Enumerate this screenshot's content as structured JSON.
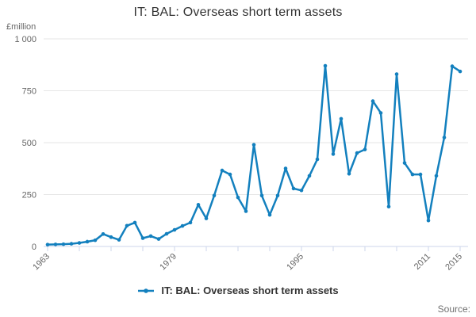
{
  "page": {
    "title": "IT: BAL: Overseas short term assets",
    "source_label": "Source:"
  },
  "legend": {
    "label": "IT: BAL: Overseas short term assets"
  },
  "y_axis": {
    "unit_label": "£million"
  },
  "colors": {
    "line": "#1380be",
    "grid": "#e6e6e6",
    "axis": "#ccd6eb",
    "tick_label": "#666666",
    "title": "#333333",
    "source": "#707070"
  },
  "chart_data": {
    "type": "line",
    "title": "IT: BAL: Overseas short term assets",
    "xlabel": "",
    "ylabel": "£million",
    "ylim": [
      0,
      1000
    ],
    "xlim": [
      1963,
      2016
    ],
    "grid": true,
    "legend_position": "bottom",
    "yticks": [
      {
        "value": 0,
        "label": "0"
      },
      {
        "value": 250,
        "label": "250"
      },
      {
        "value": 500,
        "label": "500"
      },
      {
        "value": 750,
        "label": "750"
      },
      {
        "value": 1000,
        "label": "1 000"
      }
    ],
    "xticks_all": [
      1963,
      1967,
      1971,
      1975,
      1979,
      1983,
      1987,
      1991,
      1995,
      1999,
      2003,
      2007,
      2011,
      2015
    ],
    "xticks_labeled": [
      1963,
      1979,
      1995,
      2011,
      2015
    ],
    "series": [
      {
        "name": "IT: BAL: Overseas short term assets",
        "color": "#1380be",
        "years": [
          1963,
          1964,
          1965,
          1966,
          1967,
          1968,
          1969,
          1970,
          1971,
          1972,
          1973,
          1974,
          1975,
          1976,
          1977,
          1978,
          1979,
          1980,
          1981,
          1982,
          1983,
          1984,
          1985,
          1986,
          1987,
          1988,
          1989,
          1990,
          1991,
          1992,
          1993,
          1994,
          1995,
          1996,
          1997,
          1998,
          1999,
          2000,
          2001,
          2002,
          2003,
          2004,
          2005,
          2006,
          2007,
          2008,
          2009,
          2010,
          2011,
          2012,
          2013,
          2014,
          2015
        ],
        "values": [
          9,
          10,
          11,
          13,
          17,
          23,
          30,
          60,
          45,
          32,
          100,
          115,
          40,
          50,
          36,
          61,
          80,
          99,
          115,
          201,
          135,
          245,
          366,
          347,
          236,
          170,
          490,
          245,
          152,
          245,
          376,
          279,
          270,
          340,
          420,
          870,
          445,
          615,
          350,
          450,
          467,
          700,
          643,
          192,
          830,
          402,
          347,
          347,
          125,
          340,
          525,
          868,
          843
        ]
      }
    ]
  }
}
